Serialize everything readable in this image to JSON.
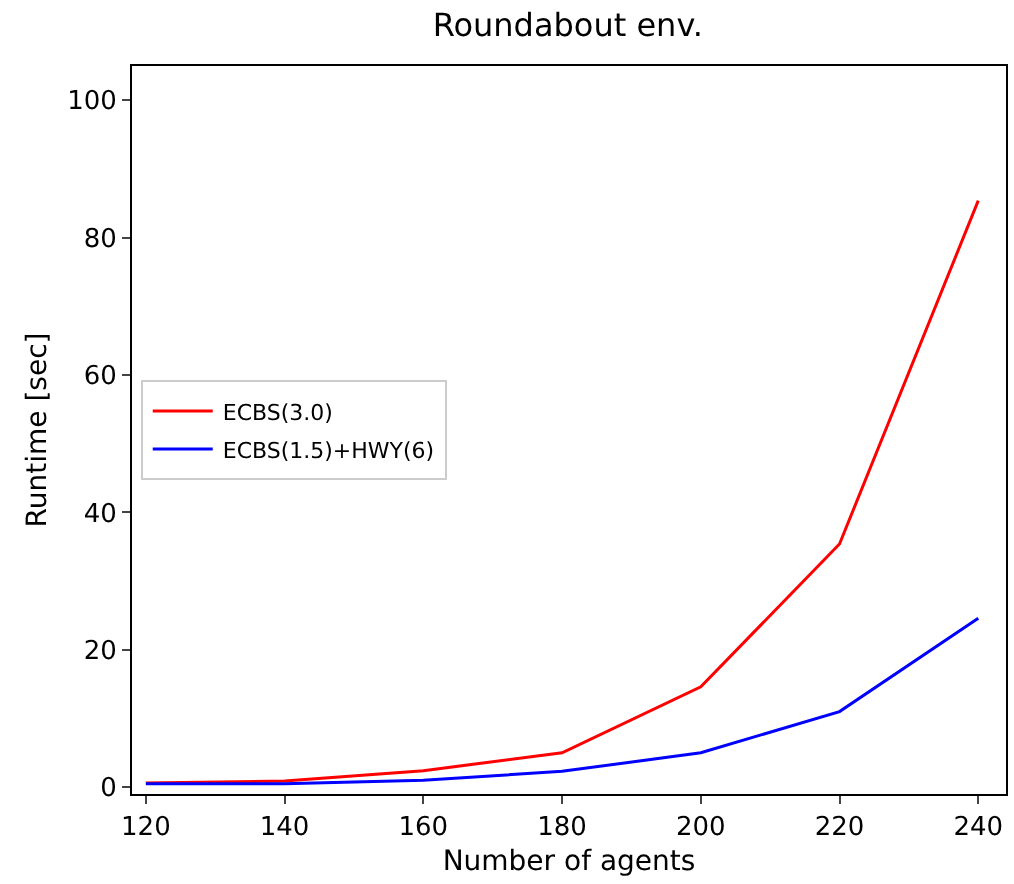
{
  "chart_data": {
    "type": "line",
    "title": "Roundabout env.",
    "xlabel": "Number of agents",
    "ylabel": "Runtime [sec]",
    "x": [
      120,
      140,
      160,
      180,
      200,
      220,
      240
    ],
    "series": [
      {
        "name": "ECBS(3.0)",
        "color": "#ff0000",
        "values": [
          0.6,
          0.9,
          2.4,
          5.0,
          14.6,
          35.4,
          85.4
        ]
      },
      {
        "name": "ECBS(1.5)+HWY(6)",
        "color": "#0000ff",
        "values": [
          0.5,
          0.5,
          1.0,
          2.3,
          5.0,
          11.0,
          24.6
        ]
      }
    ],
    "xlim": [
      118,
      244
    ],
    "ylim": [
      -1,
      105
    ],
    "xticks": [
      120,
      140,
      160,
      180,
      200,
      220,
      240
    ],
    "yticks": [
      0,
      20,
      40,
      60,
      80,
      100
    ],
    "legend": "left",
    "marker": "none",
    "line_style": "solid"
  }
}
